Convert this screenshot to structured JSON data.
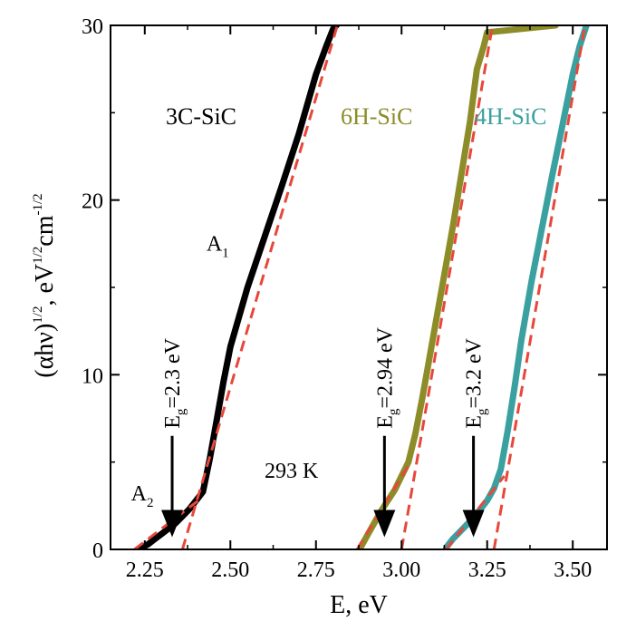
{
  "chart_data": {
    "type": "line",
    "xlabel": "E, eV",
    "ylabel": {
      "parts": [
        "(αhν)",
        "1/2",
        ", eV",
        "1/2",
        "cm",
        "-1/2"
      ]
    },
    "xlim": [
      2.15,
      3.6
    ],
    "ylim": [
      0,
      30
    ],
    "xticks": [
      2.25,
      2.5,
      2.75,
      3.0,
      3.25,
      3.5
    ],
    "xtick_labels": [
      "2.25",
      "2.50",
      "2.75",
      "3.00",
      "3.25",
      "3.50"
    ],
    "yticks": [
      0,
      10,
      20,
      30
    ],
    "ytick_labels": [
      "0",
      "10",
      "20",
      "30"
    ],
    "grid": false,
    "temperature_label": "293 K",
    "series": [
      {
        "name": "3C-SiC",
        "color": "#000000",
        "x": [
          2.24,
          2.26,
          2.28,
          2.3,
          2.32,
          2.34,
          2.36,
          2.38,
          2.4,
          2.42,
          2.44,
          2.46,
          2.48,
          2.5,
          2.55,
          2.6,
          2.65,
          2.7,
          2.75,
          2.78,
          2.8,
          2.81
        ],
        "y": [
          0.1,
          0.3,
          0.6,
          0.9,
          1.2,
          1.5,
          1.9,
          2.3,
          2.8,
          3.3,
          5.2,
          7.4,
          9.6,
          11.6,
          15.0,
          17.9,
          20.8,
          23.8,
          27.2,
          28.8,
          29.8,
          30.0
        ]
      },
      {
        "name": "6H-SiC",
        "color": "#8c8c28",
        "x": [
          2.88,
          2.9,
          2.92,
          2.94,
          2.96,
          2.98,
          3.0,
          3.02,
          3.04,
          3.06,
          3.08,
          3.1,
          3.12,
          3.15,
          3.2,
          3.22,
          3.24,
          3.25,
          3.3,
          3.4,
          3.45
        ],
        "y": [
          0.1,
          0.8,
          1.5,
          2.2,
          2.8,
          3.4,
          4.2,
          5.0,
          6.6,
          8.6,
          10.8,
          13.0,
          15.2,
          18.5,
          24.5,
          27.5,
          28.8,
          29.6,
          29.7,
          29.9,
          30.0
        ]
      },
      {
        "name": "4H-SiC",
        "color": "#3aa0a0",
        "x": [
          3.13,
          3.15,
          3.17,
          3.19,
          3.21,
          3.23,
          3.25,
          3.27,
          3.29,
          3.31,
          3.33,
          3.35,
          3.38,
          3.41,
          3.44,
          3.47,
          3.5,
          3.52,
          3.54
        ],
        "y": [
          0.1,
          0.6,
          1.0,
          1.4,
          1.8,
          2.3,
          2.8,
          3.5,
          4.6,
          6.8,
          9.3,
          12.0,
          15.4,
          18.4,
          21.4,
          24.3,
          27.2,
          28.8,
          30.0
        ]
      }
    ],
    "fits": [
      {
        "color": "#e8473a",
        "x": [
          2.36,
          2.82
        ],
        "y": [
          0,
          30.5
        ]
      },
      {
        "color": "#e8473a",
        "x": [
          3.0,
          3.27
        ],
        "y": [
          0,
          30.5
        ]
      },
      {
        "color": "#e8473a",
        "x": [
          3.27,
          3.54
        ],
        "y": [
          0,
          30.5
        ]
      },
      {
        "color": "#e8473a",
        "x": [
          2.22,
          2.42
        ],
        "y": [
          0,
          3.0
        ]
      },
      {
        "color": "#e8473a",
        "x": [
          2.87,
          3.02
        ],
        "y": [
          0,
          4.8
        ]
      },
      {
        "color": "#e8473a",
        "x": [
          3.13,
          3.3
        ],
        "y": [
          0,
          4.2
        ]
      }
    ],
    "arrows": [
      {
        "x": 2.33,
        "y_top": 6.5,
        "y_tip": 0.7,
        "label_main": "E",
        "label_sub": "g",
        "label_rest": "=2.3 eV"
      },
      {
        "x": 2.95,
        "y_top": 6.5,
        "y_tip": 0.7,
        "label_main": "E",
        "label_sub": "g",
        "label_rest": "=2.94 eV"
      },
      {
        "x": 3.21,
        "y_top": 6.5,
        "y_tip": 0.7,
        "label_main": "E",
        "label_sub": "g",
        "label_rest": "=3.2 eV"
      }
    ],
    "annotations": [
      {
        "main": "A",
        "sub": "1",
        "x": 2.43,
        "y": 17.1
      },
      {
        "main": "A",
        "sub": "2",
        "x": 2.21,
        "y": 2.8
      }
    ]
  }
}
